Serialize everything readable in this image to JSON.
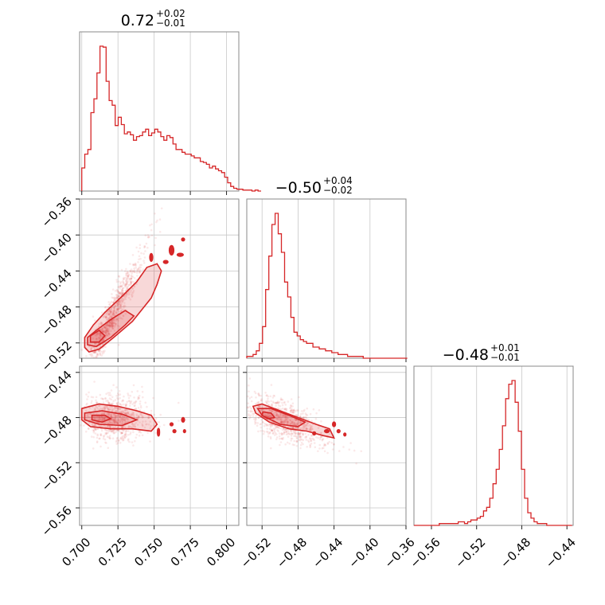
{
  "chart_data": {
    "type": "corner",
    "color": "#d62728",
    "parameters": [
      {
        "title_value": "0.72",
        "title_plus": "+0.02",
        "title_minus": "−0.01",
        "range": [
          0.6985,
          0.8085
        ],
        "ticks": [
          0.7,
          0.725,
          0.75,
          0.775,
          0.8
        ],
        "tick_labels": [
          "0.700",
          "0.725",
          "0.750",
          "0.775",
          "0.800"
        ]
      },
      {
        "title_value": "−0.50",
        "title_plus": "+0.04",
        "title_minus": "−0.02",
        "range": [
          -0.537,
          -0.36
        ],
        "ticks": [
          -0.52,
          -0.48,
          -0.44,
          -0.4,
          -0.36
        ],
        "tick_labels": [
          "−0.52",
          "−0.48",
          "−0.44",
          "−0.40",
          "−0.36"
        ]
      },
      {
        "title_value": "−0.48",
        "title_plus": "+0.01",
        "title_minus": "−0.01",
        "range": [
          -0.5755,
          -0.4345
        ],
        "ticks": [
          -0.56,
          -0.52,
          -0.48,
          -0.44
        ],
        "tick_labels": [
          "−0.56",
          "−0.52",
          "−0.48",
          "−0.44"
        ]
      }
    ],
    "histograms": [
      {
        "param": 0,
        "bin_edges_start": 0.7,
        "bin_width": 0.0021,
        "counts": [
          25,
          40,
          45,
          85,
          100,
          128,
          157,
          156,
          119,
          98,
          93,
          71,
          80,
          72,
          62,
          64,
          61,
          55,
          59,
          60,
          64,
          67,
          60,
          63,
          67,
          64,
          59,
          55,
          60,
          58,
          51,
          45,
          45,
          42,
          40,
          40,
          38,
          36,
          36,
          32,
          31,
          29,
          25,
          27,
          24,
          22,
          20,
          15,
          9,
          5,
          3,
          2,
          2,
          1,
          1,
          1,
          0,
          1,
          0
        ]
      },
      {
        "param": 1,
        "bin_edges_start": -0.537,
        "bin_width": 0.0035,
        "counts": [
          1,
          1,
          2,
          4,
          8,
          17,
          37,
          55,
          72,
          78,
          67,
          57,
          41,
          33,
          22,
          14,
          12,
          10,
          9,
          8,
          8,
          6,
          6,
          5,
          5,
          4,
          4,
          3,
          3,
          2,
          2,
          2,
          1,
          1,
          1,
          1,
          1,
          0,
          0,
          0,
          0,
          0,
          0,
          0,
          0,
          0,
          0,
          0,
          0,
          0,
          0
        ]
      },
      {
        "param": 2,
        "bin_edges_start": -0.5755,
        "bin_width": 0.0028,
        "counts": [
          0,
          0,
          0,
          0,
          0,
          0,
          0,
          0,
          1,
          1,
          1,
          1,
          1,
          1,
          2,
          2,
          1,
          2,
          3,
          3,
          4,
          5,
          8,
          10,
          15,
          23,
          31,
          42,
          55,
          70,
          78,
          80,
          68,
          52,
          31,
          15,
          7,
          4,
          2,
          1,
          1,
          1,
          0,
          0,
          0,
          0,
          0,
          0,
          0,
          0
        ]
      }
    ],
    "pairs": [
      {
        "x_param": 0,
        "y_param": 1,
        "trend": "strong positive correlation"
      },
      {
        "x_param": 0,
        "y_param": 2,
        "trend": "weak / none"
      },
      {
        "x_param": 1,
        "y_param": 2,
        "trend": "mild negative correlation"
      }
    ],
    "grid": true
  }
}
